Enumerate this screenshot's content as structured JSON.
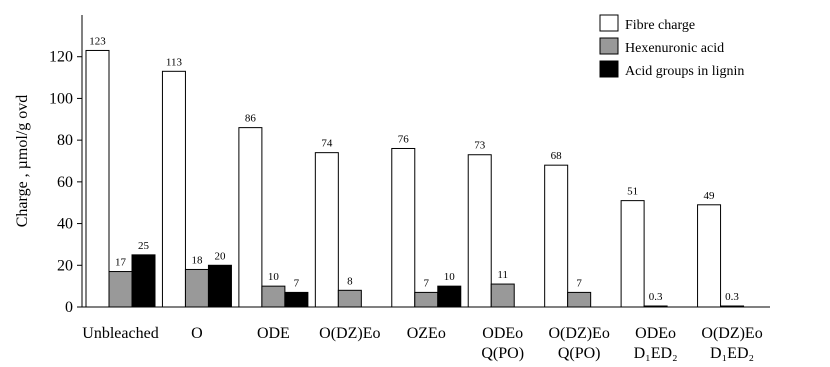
{
  "chart_data": {
    "type": "bar",
    "ylabel": "Charge , µmol/g ovd",
    "ylim": [
      0,
      140
    ],
    "yticks": [
      0,
      20,
      40,
      60,
      80,
      100,
      120
    ],
    "categories": [
      [
        "Unbleached"
      ],
      [
        "O"
      ],
      [
        "ODE"
      ],
      [
        "O(DZ)Eo"
      ],
      [
        "OZEo"
      ],
      [
        "ODEo",
        "Q(PO)"
      ],
      [
        "O(DZ)Eo",
        "Q(PO)"
      ],
      [
        "ODEo",
        "D₁ED₂"
      ],
      [
        "O(DZ)Eo",
        "D₁ED₂"
      ]
    ],
    "series": [
      {
        "name": "Fibre charge",
        "color": "#ffffff",
        "values": [
          123,
          113,
          86,
          74,
          76,
          73,
          68,
          51,
          49
        ],
        "labels": [
          "123",
          "113",
          "86",
          "74",
          "76",
          "73",
          "68",
          "51",
          "49"
        ]
      },
      {
        "name": "Hexenuronic acid",
        "color": "#999999",
        "values": [
          17,
          18,
          10,
          8,
          7,
          11,
          7,
          0.3,
          0.3
        ],
        "labels": [
          "17",
          "18",
          "10",
          "8",
          "7",
          "11",
          "7",
          "0.3",
          "0.3"
        ]
      },
      {
        "name": "Acid groups in lignin",
        "color": "#000000",
        "values": [
          25,
          20,
          7,
          null,
          10,
          null,
          null,
          null,
          null
        ],
        "labels": [
          "25",
          "20",
          "7",
          "",
          "10",
          "",
          "",
          "",
          ""
        ]
      }
    ],
    "legend_position": "top-right",
    "grid": false
  }
}
